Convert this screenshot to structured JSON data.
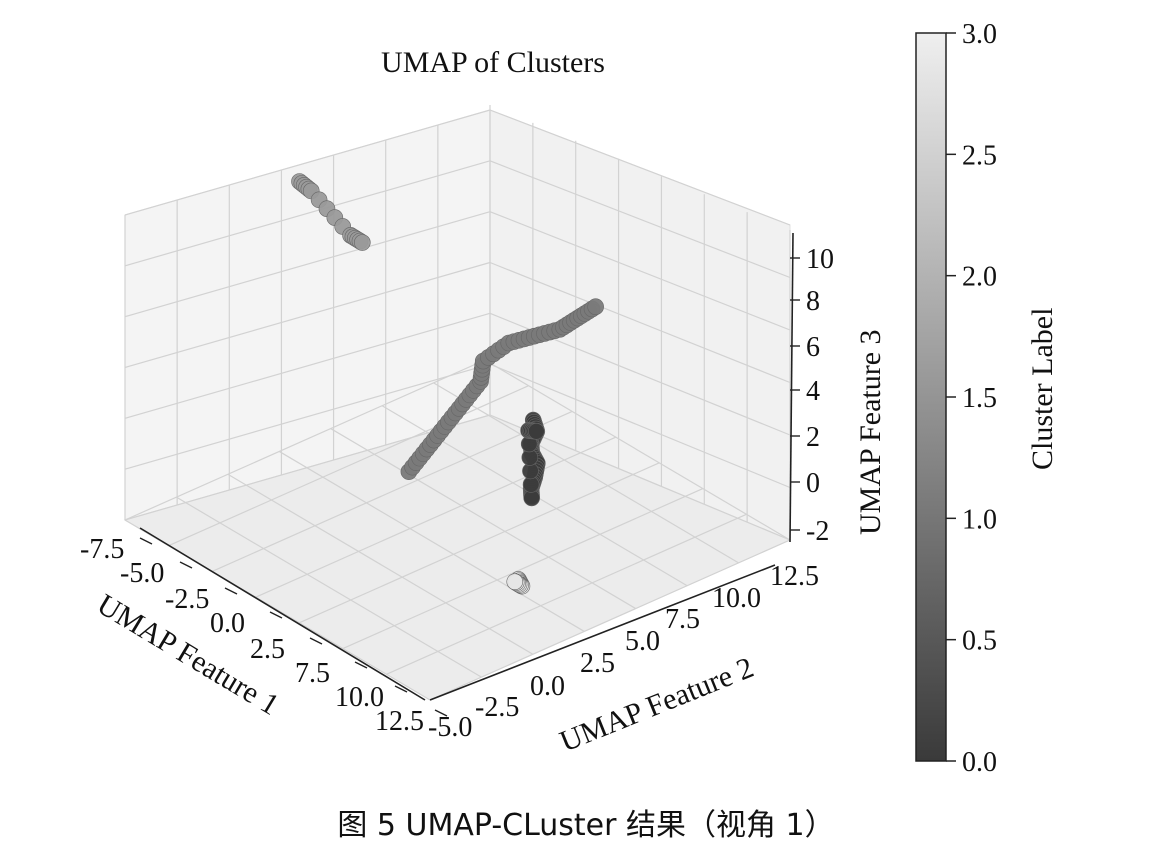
{
  "caption": "图 5  UMAP-CLuster 结果（视角 1）",
  "chart_data": {
    "type": "scatter",
    "projection": "3d",
    "title": "UMAP of Clusters",
    "xlabel": "UMAP Feature 1",
    "ylabel": "UMAP Feature 2",
    "zlabel": "UMAP Feature 3",
    "xticks": [
      "-7.5",
      "-5.0",
      "-2.5",
      "0.0",
      "2.5",
      "7.5",
      "10.0",
      "12.5"
    ],
    "yticks": [
      "-5.0",
      "-2.5",
      "0.0",
      "2.5",
      "5.0",
      "7.5",
      "10.0",
      "12.5"
    ],
    "zticks": [
      "-2",
      "0",
      "2",
      "4",
      "6",
      "8",
      "10"
    ],
    "grid": true,
    "colorbar": {
      "label": "Cluster Label",
      "range": [
        0.0,
        3.0
      ],
      "ticks": [
        "0.0",
        "0.5",
        "1.0",
        "1.5",
        "2.0",
        "2.5",
        "3.0"
      ],
      "colormap": "grayscale",
      "low_color": "#3a3a3a",
      "high_color": "#efefef"
    },
    "series": [
      {
        "cluster": 0,
        "color": "#3b3b3b",
        "points": [
          [
            10.5,
            1.5,
            5.5
          ],
          [
            10.6,
            1.6,
            5.0
          ],
          [
            10.5,
            1.4,
            4.5
          ],
          [
            10.4,
            1.5,
            4.0
          ],
          [
            10.5,
            1.7,
            3.5
          ],
          [
            10.6,
            1.5,
            3.0
          ],
          [
            10.5,
            1.4,
            2.5
          ],
          [
            10.4,
            1.5,
            2.0
          ],
          [
            10.6,
            1.2,
            5.2
          ],
          [
            10.3,
            1.8,
            4.8
          ]
        ]
      },
      {
        "cluster": 1,
        "color": "#7a7a7a",
        "points": [
          [
            1.0,
            2.5,
            -1.0
          ],
          [
            1.5,
            3.0,
            0.0
          ],
          [
            2.0,
            3.5,
            1.0
          ],
          [
            2.5,
            4.0,
            2.0
          ],
          [
            3.0,
            4.5,
            3.0
          ],
          [
            2.5,
            5.0,
            3.5
          ],
          [
            3.5,
            5.5,
            4.5
          ],
          [
            4.5,
            6.0,
            5.0
          ],
          [
            5.5,
            6.5,
            5.5
          ],
          [
            6.0,
            7.0,
            6.0
          ],
          [
            6.5,
            7.5,
            6.5
          ]
        ]
      },
      {
        "cluster": 2,
        "color": "#9a9a9a",
        "points": [
          [
            -5.5,
            2.0,
            9.5
          ],
          [
            -5.0,
            2.2,
            9.2
          ],
          [
            -3.5,
            3.0,
            7.5
          ],
          [
            -3.0,
            3.2,
            7.3
          ]
        ]
      },
      {
        "cluster": 3,
        "color": "#e6e6e6",
        "points": [
          [
            10.2,
            1.0,
            -1.5
          ],
          [
            10.3,
            1.1,
            -1.8
          ],
          [
            10.1,
            0.9,
            -1.6
          ]
        ]
      }
    ]
  }
}
